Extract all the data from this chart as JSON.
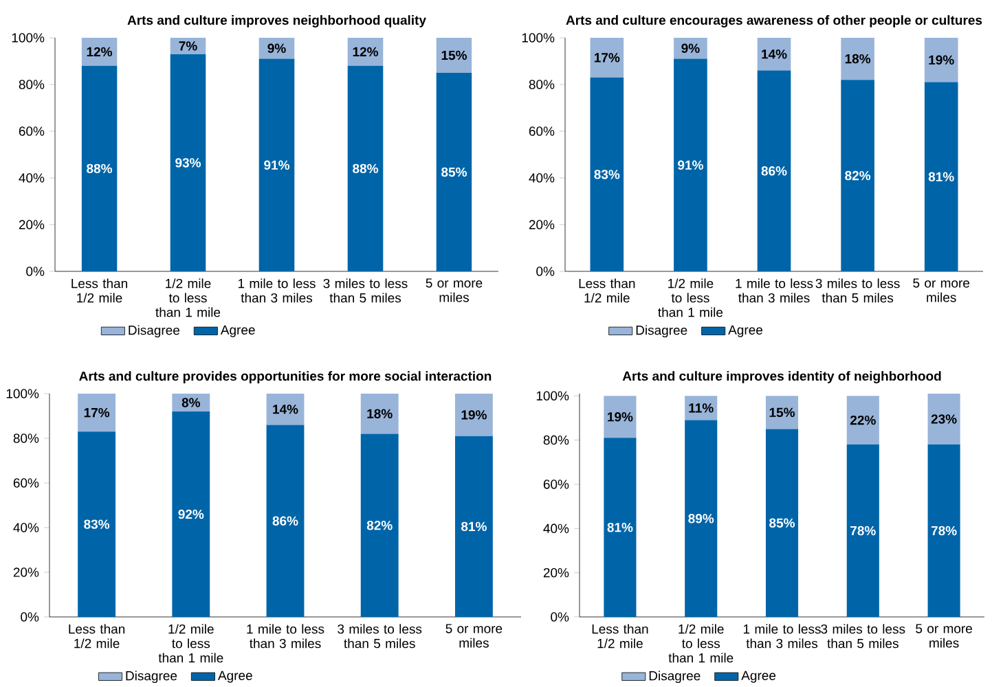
{
  "chart_data": [
    {
      "type": "bar",
      "stacked": true,
      "title": "Arts and culture improves neighborhood quality",
      "categories": [
        "Less than 1/2 mile",
        "1/2 mile to less than 1 mile",
        "1 mile to less than 3 miles",
        "3 miles to less than 5 miles",
        "5 or more miles"
      ],
      "series": [
        {
          "name": "Agree",
          "color": "#0065a8",
          "values": [
            88,
            93,
            91,
            88,
            85
          ],
          "value_labels": [
            "88%",
            "93%",
            "91%",
            "88%",
            "85%"
          ]
        },
        {
          "name": "Disagree",
          "color": "#98b4d9",
          "values": [
            12,
            7,
            9,
            12,
            15
          ],
          "value_labels": [
            "12%",
            "7%",
            "9%",
            "12%",
            "15%"
          ]
        }
      ],
      "ylim": [
        0,
        100
      ],
      "yticks": [
        {
          "value": 0,
          "label": "0%"
        },
        {
          "value": 20,
          "label": "20%"
        },
        {
          "value": 40,
          "label": "40%"
        },
        {
          "value": 60,
          "label": "60%"
        },
        {
          "value": 80,
          "label": "80%"
        },
        {
          "value": 100,
          "label": "100%"
        }
      ],
      "legend": "bottom"
    },
    {
      "type": "bar",
      "stacked": true,
      "title": "Arts and culture encourages awareness of other people or cultures",
      "categories": [
        "Less than 1/2 mile",
        "1/2 mile to less than 1 mile",
        "1 mile to less than 3 miles",
        "3 miles to less than 5 miles",
        "5 or more miles"
      ],
      "series": [
        {
          "name": "Agree",
          "color": "#0065a8",
          "values": [
            83,
            91,
            86,
            82,
            81
          ],
          "value_labels": [
            "83%",
            "91%",
            "86%",
            "82%",
            "81%"
          ]
        },
        {
          "name": "Disagree",
          "color": "#98b4d9",
          "values": [
            17,
            9,
            14,
            18,
            19
          ],
          "value_labels": [
            "17%",
            "9%",
            "14%",
            "18%",
            "19%"
          ]
        }
      ],
      "ylim": [
        0,
        100
      ],
      "yticks": [
        {
          "value": 0,
          "label": "0%"
        },
        {
          "value": 20,
          "label": "20%"
        },
        {
          "value": 40,
          "label": "40%"
        },
        {
          "value": 60,
          "label": "60%"
        },
        {
          "value": 80,
          "label": "80%"
        },
        {
          "value": 100,
          "label": "100%"
        }
      ],
      "legend": "bottom"
    },
    {
      "type": "bar",
      "stacked": true,
      "title": "Arts and culture provides opportunities for more social interaction",
      "categories": [
        "Less than 1/2 mile",
        "1/2 mile to less than 1 mile",
        "1 mile to less than 3 miles",
        "3 miles to less than 5 miles",
        "5 or more miles"
      ],
      "series": [
        {
          "name": "Agree",
          "color": "#0065a8",
          "values": [
            83,
            92,
            86,
            82,
            81
          ],
          "value_labels": [
            "83%",
            "92%",
            "86%",
            "82%",
            "81%"
          ]
        },
        {
          "name": "Disagree",
          "color": "#98b4d9",
          "values": [
            17,
            8,
            14,
            18,
            19
          ],
          "value_labels": [
            "17%",
            "8%",
            "14%",
            "18%",
            "19%"
          ]
        }
      ],
      "ylim": [
        0,
        100
      ],
      "yticks": [
        {
          "value": 0,
          "label": "0%"
        },
        {
          "value": 20,
          "label": "20%"
        },
        {
          "value": 40,
          "label": "40%"
        },
        {
          "value": 60,
          "label": "60%"
        },
        {
          "value": 80,
          "label": "80%"
        },
        {
          "value": 100,
          "label": "100%"
        }
      ],
      "legend": "bottom"
    },
    {
      "type": "bar",
      "stacked": true,
      "title": "Arts and culture improves identity of neighborhood",
      "categories": [
        "Less than 1/2 mile",
        "1/2 mile to less than 1 mile",
        "1 mile to less than 3 miles",
        "3 miles to less than 5 miles",
        "5 or more miles"
      ],
      "series": [
        {
          "name": "Agree",
          "color": "#0065a8",
          "values": [
            81,
            89,
            85,
            78,
            78
          ],
          "value_labels": [
            "81%",
            "89%",
            "85%",
            "78%",
            "78%"
          ]
        },
        {
          "name": "Disagree",
          "color": "#98b4d9",
          "values": [
            19,
            11,
            15,
            22,
            23
          ],
          "value_labels": [
            "19%",
            "11%",
            "15%",
            "22%",
            "23%"
          ]
        }
      ],
      "ylim": [
        0,
        101
      ],
      "yticks": [
        {
          "value": 0,
          "label": "0%"
        },
        {
          "value": 20,
          "label": "20%"
        },
        {
          "value": 40,
          "label": "40%"
        },
        {
          "value": 60,
          "label": "60%"
        },
        {
          "value": 80,
          "label": "80%"
        },
        {
          "value": 100,
          "label": "100%"
        }
      ],
      "legend": "bottom"
    }
  ]
}
